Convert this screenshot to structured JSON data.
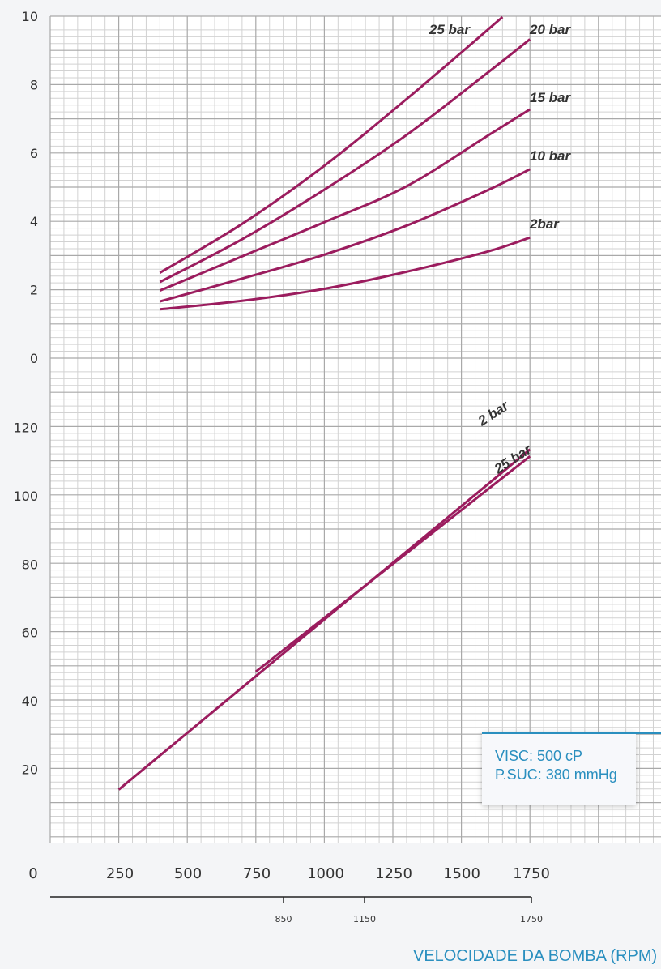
{
  "chart_data": [
    {
      "type": "line",
      "ylim": [
        0,
        10
      ],
      "yticks": [
        "10",
        "8",
        "6",
        "4",
        "2",
        "0"
      ],
      "series": [
        {
          "name": "25 bar",
          "x": [
            400,
            700,
            1000,
            1300,
            1650
          ],
          "values": [
            2.52,
            3.95,
            5.65,
            7.6,
            10.0
          ]
        },
        {
          "name": "20 bar",
          "x": [
            400,
            700,
            1000,
            1300,
            1600,
            1750
          ],
          "values": [
            2.25,
            3.5,
            4.95,
            6.55,
            8.4,
            9.35
          ]
        },
        {
          "name": "15 bar",
          "x": [
            400,
            700,
            1000,
            1300,
            1600,
            1750
          ],
          "values": [
            2.0,
            3.0,
            4.0,
            5.05,
            6.55,
            7.3
          ]
        },
        {
          "name": "10 bar",
          "x": [
            400,
            700,
            1000,
            1300,
            1600,
            1750
          ],
          "values": [
            1.68,
            2.35,
            3.05,
            3.9,
            4.95,
            5.55
          ]
        },
        {
          "name": "2bar",
          "x": [
            400,
            700,
            1000,
            1300,
            1600,
            1750
          ],
          "values": [
            1.45,
            1.7,
            2.05,
            2.55,
            3.15,
            3.55
          ]
        }
      ]
    },
    {
      "type": "line",
      "ylim": [
        0,
        140
      ],
      "yticks": [
        "120",
        "100",
        "80",
        "60",
        "40",
        "20"
      ],
      "series": [
        {
          "name": "2 bar",
          "x": [
            250,
            1750
          ],
          "values": [
            15.5,
            115.0
          ]
        },
        {
          "name": "25 bar",
          "x": [
            750,
            1750
          ],
          "values": [
            50.0,
            113.0
          ]
        }
      ]
    }
  ],
  "x_axis": {
    "ticks": [
      "0",
      "250",
      "500",
      "750",
      "1000",
      "1250",
      "1500",
      "1750"
    ],
    "secondary_ticks": [
      "850",
      "1150",
      "1750"
    ],
    "title": "VELOCIDADE DA BOMBA (RPM)"
  },
  "info_box": {
    "line1": "VISC: 500 cP",
    "line2": "P.SUC: 380 mmHg"
  },
  "colors": {
    "curve": "#9b1c5e",
    "grid_major": "#a9a9a9",
    "grid_minor": "#d2d2d2",
    "accent": "#2a8fbf"
  }
}
